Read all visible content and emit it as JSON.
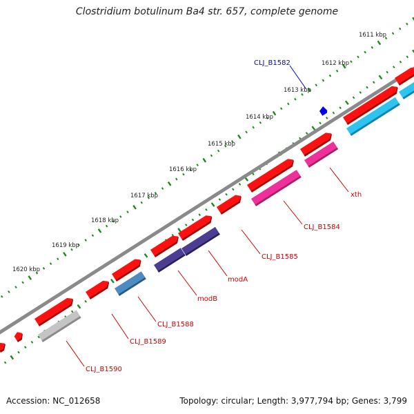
{
  "title": "Clostridium botulinum Ba4 str. 657, complete genome",
  "accession": "Accession: NC_012658",
  "summary": "Topology: circular; Length: 3,977,794 bp; Genes: 3,799",
  "colors": {
    "backbone": "#777777",
    "tick": "#1a8a1a",
    "gene_red": "#ee0000",
    "gene_pink": "#ee2a8c",
    "gene_cyan": "#22bff0",
    "gene_navy": "#4a3a8c",
    "gene_steel": "#4a85b8",
    "gene_grey": "#bdbdbd",
    "label_red": "#cc0000",
    "label_blue": "#0000cc"
  },
  "scale_labels": [
    "1611 kbp",
    "1612 kbp",
    "1613 kbp",
    "1614 kbp",
    "1615 kbp",
    "1616 kbp",
    "1617 kbp",
    "1618 kbp",
    "1619 kbp",
    "1620 kbp"
  ],
  "gene_labels": {
    "g1582": "CLJ_B1582",
    "g_xth": "xth",
    "g1584": "CLJ_B1584",
    "g1585": "CLJ_B1585",
    "g_modA": "modA",
    "g_modB": "modB",
    "g1588": "CLJ_B1588",
    "g1589": "CLJ_B1589",
    "g1590": "CLJ_B1590"
  }
}
